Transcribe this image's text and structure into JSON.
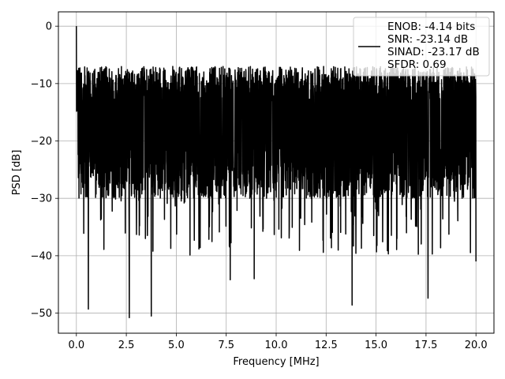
{
  "chart_data": {
    "type": "line",
    "title": "",
    "xlabel": "Frequency [MHz]",
    "ylabel": "PSD [dB]",
    "xlim": [
      -0.9,
      20.9
    ],
    "ylim": [
      -53.5,
      2.5
    ],
    "xticks": [
      0.0,
      2.5,
      5.0,
      7.5,
      10.0,
      12.5,
      15.0,
      17.5,
      20.0
    ],
    "xtick_labels": [
      "0.0",
      "2.5",
      "5.0",
      "7.5",
      "10.0",
      "12.5",
      "15.0",
      "17.5",
      "20.0"
    ],
    "yticks": [
      0,
      -10,
      -20,
      -30,
      -40,
      -50
    ],
    "ytick_labels": [
      "0",
      "−10",
      "−20",
      "−30",
      "−40",
      "−50"
    ],
    "grid": true,
    "legend_position": "top-right",
    "legend_lines": [
      "ENOB: -4.14 bits",
      "SNR: -23.14 dB",
      "SINAD: -23.17 dB",
      "SFDR: 0.69"
    ],
    "series": [
      {
        "color": "#000000",
        "x_range": [
          0,
          20
        ],
        "envelope_upper_db": -9,
        "envelope_lower_db": -28,
        "peak": {
          "x": 0.0,
          "y": 0.0
        },
        "notable_dips": [
          {
            "x": 0.6,
            "y": -49.3
          },
          {
            "x": 2.65,
            "y": -50.8
          },
          {
            "x": 3.75,
            "y": -50.5
          },
          {
            "x": 7.7,
            "y": -44.2
          },
          {
            "x": 8.9,
            "y": -44.0
          },
          {
            "x": 13.8,
            "y": -48.6
          },
          {
            "x": 17.6,
            "y": -47.4
          },
          {
            "x": 20.0,
            "y": -41.0
          }
        ]
      }
    ]
  }
}
